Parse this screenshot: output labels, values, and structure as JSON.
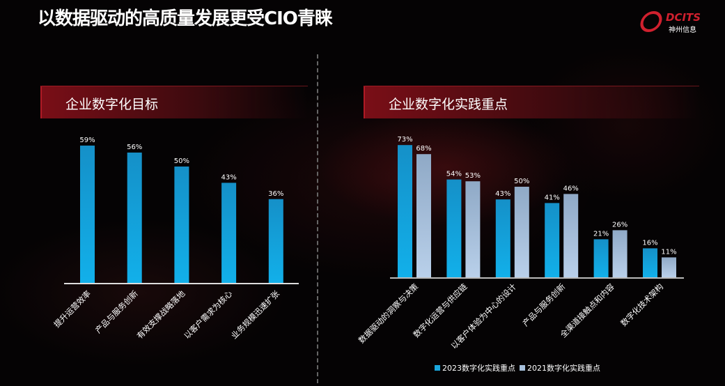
{
  "title": "以数据驱动的高质量发展更受CIO青睐",
  "logo": {
    "brand": "DCITS",
    "name": "神州信息"
  },
  "colors": {
    "accent": "#1aa6dc",
    "series2021": "#a7c0dc",
    "banner": "#7a0e17"
  },
  "chart_data": [
    {
      "type": "bar",
      "title": "企业数字化目标",
      "categories": [
        "提升运营效率",
        "产品与服务创新",
        "有效支撑战略落地",
        "以客户需求为核心",
        "业务规模迅速扩张"
      ],
      "values": [
        59,
        56,
        50,
        43,
        36
      ],
      "unit": "%",
      "data_labels": [
        "59%",
        "56%",
        "50%",
        "43%",
        "36%"
      ],
      "grid": false
    },
    {
      "type": "bar",
      "title": "企业数字化实践重点",
      "categories": [
        "数据驱动的洞察与决策",
        "数字化运营与供应链",
        "以客户体验为中心的设计",
        "产品与服务创新",
        "全渠道接触点和内容",
        "数字化技术架构"
      ],
      "series": [
        {
          "name": "2023数字化实践重点",
          "values": [
            73,
            54,
            43,
            41,
            21,
            16
          ],
          "labels": [
            "73%",
            "54%",
            "43%",
            "41%",
            "21%",
            "16%"
          ]
        },
        {
          "name": "2021数字化实践重点",
          "values": [
            68,
            53,
            50,
            46,
            26,
            11
          ],
          "labels": [
            "68%",
            "53%",
            "50%",
            "46%",
            "26%",
            "11%"
          ]
        }
      ],
      "unit": "%",
      "legend": "bottom",
      "grid": false
    }
  ]
}
